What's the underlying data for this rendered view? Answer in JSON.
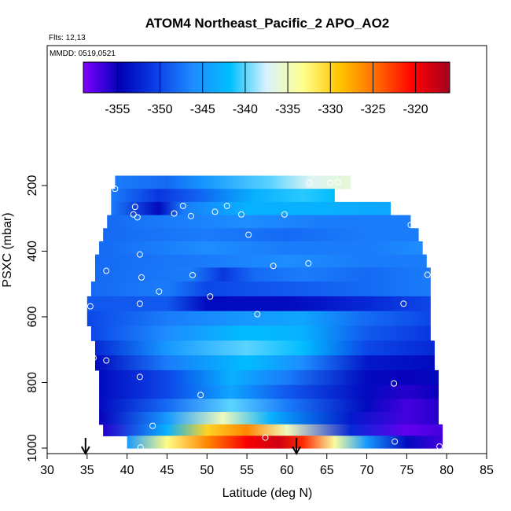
{
  "chart_data": {
    "type": "heatmap",
    "title": "ATOM4 Northeast_Pacific_2 APO_AO2",
    "flights_label": "Flts: 12,13",
    "mmdd_label": "MMDD: 0519,0521",
    "xlabel": "Latitude (deg N)",
    "ylabel": "PSXC (mbar)",
    "xlim": [
      30,
      85
    ],
    "ylim": [
      1000,
      30
    ],
    "y_inverted": true,
    "grid": false,
    "x_ticks": [
      "30",
      "35",
      "40",
      "45",
      "50",
      "55",
      "60",
      "65",
      "70",
      "75",
      "80",
      "85"
    ],
    "y_ticks": [
      "200",
      "400",
      "600",
      "800",
      "1000"
    ],
    "colorbar": {
      "range": [
        -359,
        -316
      ],
      "ticks": [
        "-355",
        "-350",
        "-345",
        "-340",
        "-335",
        "-330",
        "-325",
        "-320"
      ],
      "tick_values": [
        -355,
        -350,
        -345,
        -340,
        -335,
        -330,
        -325,
        -320
      ],
      "colors": [
        "#7f00ff",
        "#0000b8",
        "#0a40e6",
        "#1e8cff",
        "#00bfff",
        "#d9f2ff",
        "#ffff8c",
        "#ffc400",
        "#ff6a00",
        "#ff0000",
        "#a50021"
      ],
      "placement": "top-inside"
    },
    "arrows_lat": [
      34.8,
      61.2
    ],
    "bands": [
      {
        "p": 190,
        "lat0": 38.5,
        "lat1": 68.0,
        "stops": [
          [
            38.5,
            -347
          ],
          [
            45,
            -348
          ],
          [
            50,
            -345
          ],
          [
            58,
            -340
          ],
          [
            63,
            -337
          ],
          [
            68,
            -336
          ]
        ]
      },
      {
        "p": 230,
        "lat0": 38.0,
        "lat1": 66.0,
        "stops": [
          [
            38,
            -347
          ],
          [
            44,
            -351
          ],
          [
            48,
            -349
          ],
          [
            56,
            -343
          ],
          [
            62,
            -341
          ],
          [
            66,
            -342
          ]
        ]
      },
      {
        "p": 270,
        "lat0": 38.0,
        "lat1": 73.0,
        "stops": [
          [
            38,
            -347
          ],
          [
            44,
            -354
          ],
          [
            47,
            -347
          ],
          [
            55,
            -343
          ],
          [
            65,
            -343
          ],
          [
            73,
            -344
          ]
        ]
      },
      {
        "p": 310,
        "lat0": 37.5,
        "lat1": 75.5,
        "stops": [
          [
            37.5,
            -348
          ],
          [
            45,
            -347
          ],
          [
            55,
            -346
          ],
          [
            65,
            -347
          ],
          [
            75.5,
            -347
          ]
        ]
      },
      {
        "p": 350,
        "lat0": 37.0,
        "lat1": 76.5,
        "stops": [
          [
            37,
            -348
          ],
          [
            50,
            -347
          ],
          [
            60,
            -348
          ],
          [
            70,
            -347
          ],
          [
            76.5,
            -347
          ]
        ]
      },
      {
        "p": 390,
        "lat0": 36.5,
        "lat1": 77.0,
        "stops": [
          [
            36.5,
            -348
          ],
          [
            50,
            -346
          ],
          [
            60,
            -347
          ],
          [
            70,
            -347
          ],
          [
            77,
            -346
          ]
        ]
      },
      {
        "p": 430,
        "lat0": 36.0,
        "lat1": 77.5,
        "stops": [
          [
            36,
            -348
          ],
          [
            50,
            -347
          ],
          [
            60,
            -346
          ],
          [
            70,
            -347
          ],
          [
            77.5,
            -347
          ]
        ]
      },
      {
        "p": 470,
        "lat0": 36.0,
        "lat1": 78.0,
        "stops": [
          [
            36,
            -348
          ],
          [
            48,
            -347
          ],
          [
            52,
            -351
          ],
          [
            56,
            -348
          ],
          [
            62,
            -347
          ],
          [
            70,
            -348
          ],
          [
            78,
            -347
          ]
        ]
      },
      {
        "p": 515,
        "lat0": 35.5,
        "lat1": 78.0,
        "stops": [
          [
            35.5,
            -348
          ],
          [
            45,
            -347
          ],
          [
            50,
            -350
          ],
          [
            60,
            -349
          ],
          [
            70,
            -348
          ],
          [
            78,
            -347
          ]
        ]
      },
      {
        "p": 560,
        "lat0": 35.0,
        "lat1": 78.0,
        "stops": [
          [
            35,
            -349
          ],
          [
            45,
            -349
          ],
          [
            50,
            -354
          ],
          [
            60,
            -354
          ],
          [
            70,
            -352
          ],
          [
            78,
            -350
          ]
        ]
      },
      {
        "p": 605,
        "lat0": 35.0,
        "lat1": 78.0,
        "stops": [
          [
            35,
            -350
          ],
          [
            45,
            -347
          ],
          [
            55,
            -345
          ],
          [
            62,
            -344
          ],
          [
            70,
            -348
          ],
          [
            78,
            -350
          ]
        ]
      },
      {
        "p": 650,
        "lat0": 35.5,
        "lat1": 78.0,
        "stops": [
          [
            35.5,
            -350
          ],
          [
            45,
            -346
          ],
          [
            55,
            -342
          ],
          [
            62,
            -343
          ],
          [
            70,
            -349
          ],
          [
            78,
            -351
          ]
        ]
      },
      {
        "p": 695,
        "lat0": 36.0,
        "lat1": 78.5,
        "stops": [
          [
            36,
            -352
          ],
          [
            45,
            -345
          ],
          [
            55,
            -340
          ],
          [
            62,
            -342
          ],
          [
            70,
            -350
          ],
          [
            78.5,
            -352
          ]
        ]
      },
      {
        "p": 740,
        "lat0": 36.0,
        "lat1": 78.5,
        "stops": [
          [
            36,
            -354
          ],
          [
            45,
            -347
          ],
          [
            55,
            -342
          ],
          [
            62,
            -346
          ],
          [
            70,
            -353
          ],
          [
            78.5,
            -354
          ]
        ]
      },
      {
        "p": 785,
        "lat0": 36.5,
        "lat1": 79.0,
        "stops": [
          [
            36.5,
            -354
          ],
          [
            45,
            -350
          ],
          [
            53,
            -343
          ],
          [
            60,
            -347
          ],
          [
            70,
            -354
          ],
          [
            75,
            -355
          ],
          [
            79,
            -354
          ]
        ]
      },
      {
        "p": 830,
        "lat0": 36.5,
        "lat1": 79.0,
        "stops": [
          [
            36.5,
            -354
          ],
          [
            45,
            -350
          ],
          [
            53,
            -344
          ],
          [
            60,
            -349
          ],
          [
            70,
            -354
          ],
          [
            75,
            -356
          ],
          [
            79,
            -355
          ]
        ]
      },
      {
        "p": 870,
        "lat0": 36.5,
        "lat1": 79.0,
        "stops": [
          [
            36.5,
            -354
          ],
          [
            45,
            -348
          ],
          [
            53,
            -340
          ],
          [
            60,
            -347
          ],
          [
            70,
            -354
          ],
          [
            75,
            -357
          ],
          [
            79,
            -356
          ]
        ]
      },
      {
        "p": 910,
        "lat0": 36.5,
        "lat1": 79.0,
        "stops": [
          [
            36.5,
            -355
          ],
          [
            45,
            -345
          ],
          [
            52,
            -335
          ],
          [
            58,
            -343
          ],
          [
            68,
            -353
          ],
          [
            75,
            -357
          ],
          [
            79,
            -356
          ]
        ]
      },
      {
        "p": 945,
        "lat0": 37.0,
        "lat1": 79.5,
        "stops": [
          [
            37,
            -356
          ],
          [
            45,
            -343
          ],
          [
            50,
            -330
          ],
          [
            55,
            -326
          ],
          [
            60,
            -335
          ],
          [
            68,
            -352
          ],
          [
            75,
            -358
          ],
          [
            79.5,
            -357
          ]
        ]
      },
      {
        "p": 980,
        "lat0": 40.0,
        "lat1": 79.5,
        "stops": [
          [
            40,
            -345
          ],
          [
            45,
            -333
          ],
          [
            50,
            -326
          ],
          [
            55,
            -320
          ],
          [
            59,
            -318
          ],
          [
            62,
            -322
          ],
          [
            66,
            -334
          ],
          [
            70,
            -345
          ],
          [
            75,
            -354
          ],
          [
            79.5,
            -357
          ]
        ]
      }
    ],
    "samples": [
      [
        38.5,
        210
      ],
      [
        41,
        265
      ],
      [
        40.8,
        288
      ],
      [
        41.3,
        297
      ],
      [
        45.9,
        285
      ],
      [
        47,
        262
      ],
      [
        48,
        293
      ],
      [
        51,
        280
      ],
      [
        52.5,
        262
      ],
      [
        54.3,
        288
      ],
      [
        59.7,
        288
      ],
      [
        55.2,
        350
      ],
      [
        41.6,
        410
      ],
      [
        37.4,
        460
      ],
      [
        41.8,
        480
      ],
      [
        48.2,
        473
      ],
      [
        58.3,
        445
      ],
      [
        62.7,
        437
      ],
      [
        75.5,
        320
      ],
      [
        44,
        523
      ],
      [
        50.4,
        538
      ],
      [
        41.6,
        560
      ],
      [
        35.4,
        568
      ],
      [
        74.6,
        560
      ],
      [
        77.6,
        472
      ],
      [
        56.3,
        592
      ],
      [
        35.8,
        725
      ],
      [
        37.4,
        733
      ],
      [
        41.6,
        783
      ],
      [
        49.2,
        838
      ],
      [
        73.4,
        803
      ],
      [
        43.2,
        932
      ],
      [
        36.2,
        958
      ],
      [
        57.3,
        968
      ],
      [
        62.8,
        192
      ],
      [
        65.4,
        192
      ],
      [
        66.4,
        190
      ],
      [
        41.7,
        998
      ],
      [
        73.5,
        980
      ],
      [
        79.1,
        995
      ]
    ]
  }
}
